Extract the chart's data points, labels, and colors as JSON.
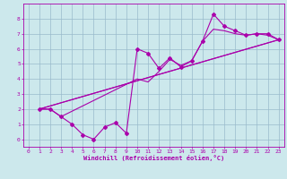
{
  "xlabel": "Windchill (Refroidissement éolien,°C)",
  "bg_color": "#cce8ec",
  "line_color": "#aa00aa",
  "grid_color": "#99bbcc",
  "xlim": [
    -0.5,
    23.5
  ],
  "ylim": [
    -0.5,
    9.0
  ],
  "xticks": [
    0,
    1,
    2,
    3,
    4,
    5,
    6,
    7,
    8,
    9,
    10,
    11,
    12,
    13,
    14,
    15,
    16,
    17,
    18,
    19,
    20,
    21,
    22,
    23
  ],
  "yticks": [
    0,
    1,
    2,
    3,
    4,
    5,
    6,
    7,
    8
  ],
  "series1_x": [
    1,
    2,
    3,
    4,
    5,
    6,
    7,
    8,
    9,
    10,
    11,
    12,
    13,
    14,
    15,
    16,
    17,
    18,
    19,
    20,
    21,
    22,
    23
  ],
  "series1_y": [
    2.0,
    2.0,
    1.5,
    1.0,
    0.3,
    0.0,
    0.8,
    1.1,
    0.4,
    6.0,
    5.7,
    4.7,
    5.4,
    4.8,
    5.2,
    6.5,
    8.3,
    7.5,
    7.2,
    6.9,
    7.0,
    7.0,
    6.6
  ],
  "series2_x": [
    1,
    23
  ],
  "series2_y": [
    2.0,
    6.6
  ],
  "series3_x": [
    1,
    2,
    3,
    10,
    11,
    12,
    13,
    14,
    15,
    16,
    17,
    18,
    19,
    20,
    21,
    22,
    23
  ],
  "series3_y": [
    2.0,
    2.0,
    1.5,
    4.0,
    3.8,
    4.5,
    5.3,
    4.9,
    5.2,
    6.5,
    7.3,
    7.2,
    7.0,
    6.9,
    7.0,
    6.9,
    6.6
  ],
  "series4_x": [
    1,
    23
  ],
  "series4_y": [
    2.0,
    6.6
  ]
}
